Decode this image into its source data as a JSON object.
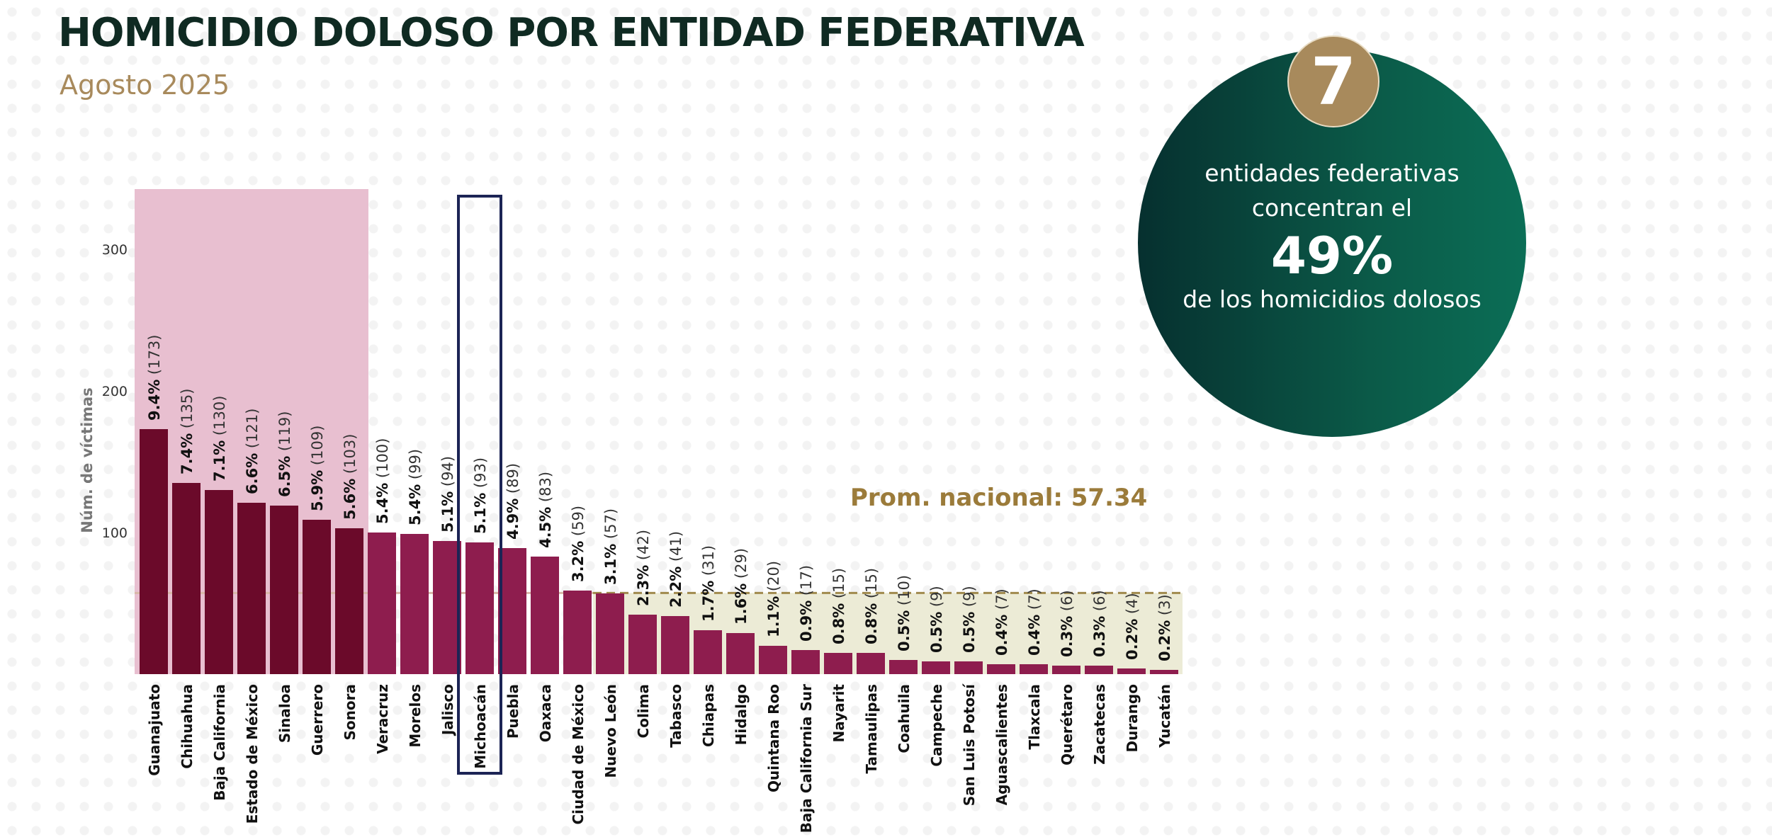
{
  "header": {
    "title": "HOMICIDIO DOLOSO POR ENTIDAD FEDERATIVA",
    "subtitle": "Agosto 2025"
  },
  "callout": {
    "number": "7",
    "line1": "entidades federativas",
    "line2": "concentran el",
    "percent": "49%",
    "line3": "de los homicidios dolosos"
  },
  "colors": {
    "top7": "#6b0a2a",
    "others": "#8e1d4e",
    "highlight_top": "#e8bfd0",
    "below_avg": "#ecebd6",
    "avg_line": "#a08a4e",
    "avg_text": "#9b7b3a",
    "michoacan_box": "#1c2455",
    "callout_bg": "#0b5a48",
    "badge": "#a88a5c"
  },
  "chart_data": {
    "type": "bar",
    "title": "",
    "ylabel": "Núm. de víctimas",
    "xlabel": "",
    "ylim": [
      0,
      340
    ],
    "yticks": [
      100,
      200,
      300
    ],
    "average": {
      "label": "Prom. nacional: 57.34",
      "value": 57.34
    },
    "highlighted_top_count": 7,
    "boxed_category": "Michoacán",
    "categories": [
      "Guanajuato",
      "Chihuahua",
      "Baja California",
      "Estado de México",
      "Sinaloa",
      "Guerrero",
      "Sonora",
      "Veracruz",
      "Morelos",
      "Jalisco",
      "Michoacán",
      "Puebla",
      "Oaxaca",
      "Ciudad de México",
      "Nuevo León",
      "Colima",
      "Tabasco",
      "Chiapas",
      "Hidalgo",
      "Quintana Roo",
      "Baja California Sur",
      "Nayarit",
      "Tamaulipas",
      "Coahuila",
      "Campeche",
      "San Luis Potosí",
      "Aguascalientes",
      "Tlaxcala",
      "Querétaro",
      "Zacatecas",
      "Durango",
      "Yucatán"
    ],
    "values": [
      173,
      135,
      130,
      121,
      119,
      109,
      103,
      100,
      99,
      94,
      93,
      89,
      83,
      59,
      57,
      42,
      41,
      31,
      29,
      20,
      17,
      15,
      15,
      10,
      9,
      9,
      7,
      7,
      6,
      6,
      4,
      3
    ],
    "percent_labels": [
      "9.4%",
      "7.4%",
      "7.1%",
      "6.6%",
      "6.5%",
      "5.9%",
      "5.6%",
      "5.4%",
      "5.4%",
      "5.1%",
      "5.1%",
      "4.9%",
      "4.5%",
      "3.2%",
      "3.1%",
      "2.3%",
      "2.2%",
      "1.7%",
      "1.6%",
      "1.1%",
      "0.9%",
      "0.8%",
      "0.8%",
      "0.5%",
      "0.5%",
      "0.5%",
      "0.4%",
      "0.4%",
      "0.3%",
      "0.3%",
      "0.2%",
      "0.2%"
    ]
  }
}
